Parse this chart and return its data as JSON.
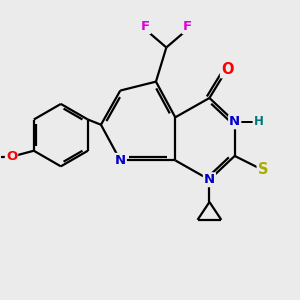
{
  "bg_color": "#ebebeb",
  "bond_color": "#000000",
  "bond_width": 1.6,
  "atom_colors": {
    "C": "#000000",
    "N": "#0000cc",
    "O": "#ff0000",
    "S": "#aaaa00",
    "F": "#dd00dd",
    "H": "#007777"
  },
  "font_size": 9.5
}
